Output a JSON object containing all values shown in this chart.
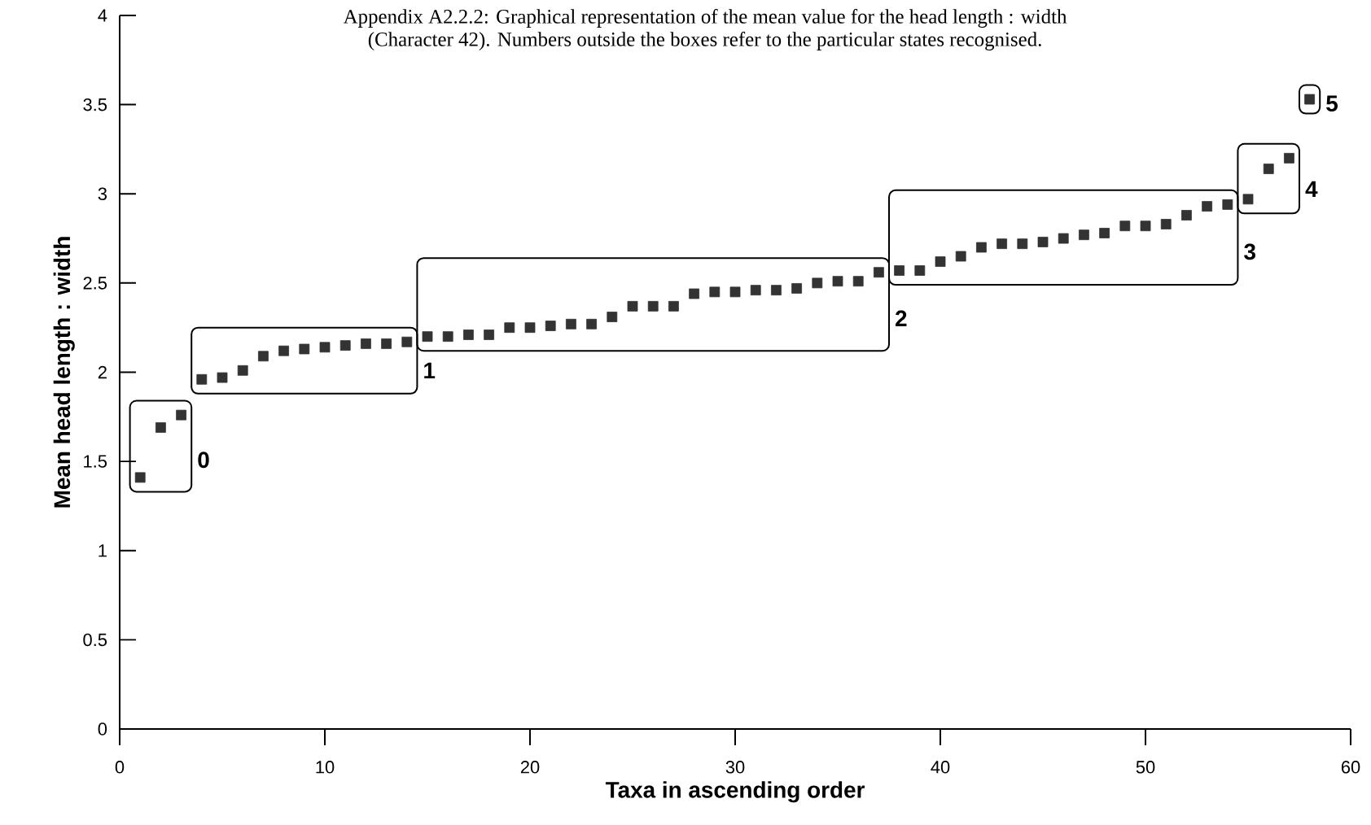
{
  "chart_data": {
    "type": "scatter",
    "title": "Appendix A2.2.2: Graphical representation of the mean value for the head length : width",
    "subtitle": "(Character 42).  Numbers outside the boxes refer to the particular states recognised.",
    "xlabel": "Taxa in ascending order",
    "ylabel": "Mean  head  length  :  width",
    "series": [
      {
        "color": "#333333",
        "x": [
          1,
          2,
          3
        ],
        "values": [
          1.41,
          1.69,
          1.76
        ]
      },
      {
        "color": "#333333",
        "x": [
          4,
          5,
          6,
          7,
          8,
          9,
          10,
          11,
          12,
          13,
          14
        ],
        "values": [
          1.96,
          1.97,
          2.01,
          2.09,
          2.12,
          2.13,
          2.14,
          2.15,
          2.16,
          2.16,
          2.17
        ]
      },
      {
        "color": "#333333",
        "x": [
          15,
          16,
          17,
          18,
          19,
          20,
          21,
          22,
          23,
          24,
          25,
          26,
          27,
          28,
          29,
          30,
          31,
          32,
          33,
          34,
          35,
          36,
          37
        ],
        "values": [
          2.2,
          2.2,
          2.21,
          2.21,
          2.25,
          2.25,
          2.26,
          2.27,
          2.27,
          2.31,
          2.37,
          2.37,
          2.37,
          2.44,
          2.45,
          2.45,
          2.46,
          2.46,
          2.47,
          2.5,
          2.51,
          2.51,
          2.56
        ]
      },
      {
        "color": "#333333",
        "x": [
          38,
          39,
          40,
          41,
          42,
          43,
          44,
          45,
          46,
          47,
          48,
          49,
          50,
          51,
          52,
          53,
          54
        ],
        "values": [
          2.57,
          2.57,
          2.62,
          2.65,
          2.7,
          2.72,
          2.72,
          2.73,
          2.75,
          2.77,
          2.78,
          2.82,
          2.82,
          2.83,
          2.88,
          2.93,
          2.94
        ]
      },
      {
        "color": "#333333",
        "x": [
          55,
          56,
          57
        ],
        "values": [
          2.97,
          3.14,
          3.2
        ]
      },
      {
        "color": "#333333",
        "x": [
          58
        ],
        "values": [
          3.53
        ]
      }
    ],
    "marker": "square",
    "xlim": [
      0,
      60
    ],
    "ylim": [
      0,
      4
    ],
    "xticks": [
      0,
      10,
      20,
      30,
      40,
      50,
      60
    ],
    "yticks": [
      0,
      0.5,
      1,
      1.5,
      2,
      2.5,
      3,
      3.5,
      4
    ],
    "annotations": [
      "0",
      "1",
      "2",
      "3",
      "4",
      "5"
    ]
  }
}
